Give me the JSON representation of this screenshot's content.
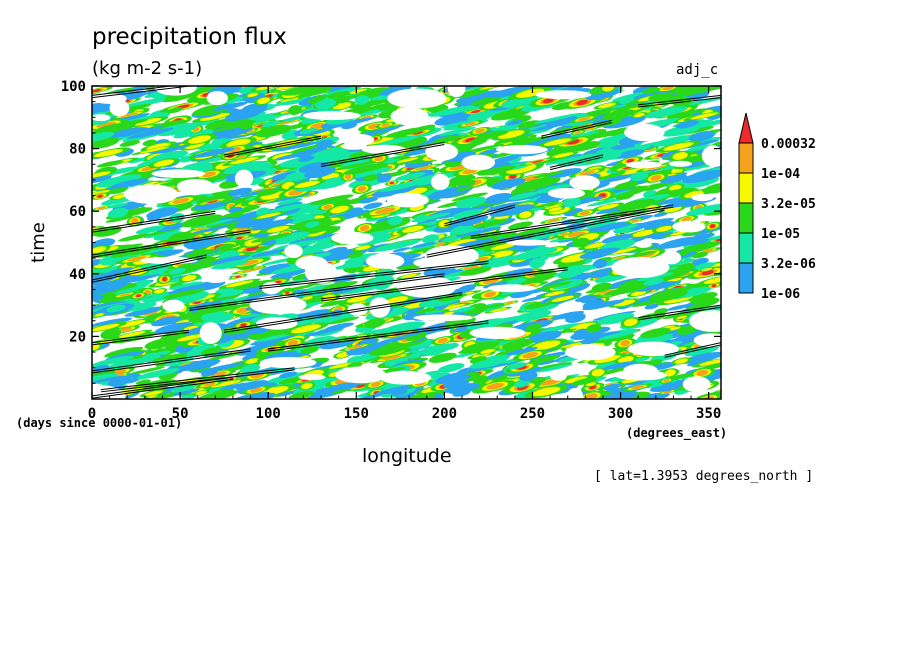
{
  "header": {
    "title": "precipitation flux",
    "units": "(kg m-2 s-1)",
    "tag": "adj_c",
    "note": "[ lat=1.3953 degrees_north ]"
  },
  "chart_data": {
    "type": "heatmap",
    "title": "precipitation flux",
    "subtitle": "(kg m-2 s-1)",
    "xlabel": "longitude",
    "ylabel": "time",
    "x_units": "(degrees_east)",
    "y_units": "(days since 0000-01-01)",
    "xlim": [
      0,
      357
    ],
    "ylim": [
      0,
      100
    ],
    "x_ticks": [
      0,
      50,
      100,
      150,
      200,
      250,
      300,
      350
    ],
    "y_ticks": [
      20,
      40,
      60,
      80,
      100
    ],
    "colorbar": {
      "levels": [
        "1e-06",
        "3.2e-06",
        "1e-05",
        "3.2e-05",
        "1e-04",
        "0.00032"
      ],
      "colors": [
        "#2aa3f0",
        "#14e8a4",
        "#2ad81a",
        "#f7f700",
        "#f6a21a",
        "#ee2a2a"
      ],
      "extend": "max"
    },
    "propagation_lines": [
      {
        "x": [
          0,
          80
        ],
        "y": [
          1,
          7
        ]
      },
      {
        "x": [
          0,
          90
        ],
        "y": [
          9,
          16
        ]
      },
      {
        "x": [
          0,
          55
        ],
        "y": [
          18,
          22
        ]
      },
      {
        "x": [
          5,
          115
        ],
        "y": [
          3,
          10
        ]
      },
      {
        "x": [
          100,
          225
        ],
        "y": [
          16,
          25
        ]
      },
      {
        "x": [
          75,
          210
        ],
        "y": [
          22,
          34
        ]
      },
      {
        "x": [
          55,
          200
        ],
        "y": [
          29,
          40
        ]
      },
      {
        "x": [
          130,
          270
        ],
        "y": [
          32,
          42
        ]
      },
      {
        "x": [
          0,
          65
        ],
        "y": [
          38,
          46
        ]
      },
      {
        "x": [
          95,
          225
        ],
        "y": [
          36,
          44
        ]
      },
      {
        "x": [
          190,
          325
        ],
        "y": [
          46,
          61
        ]
      },
      {
        "x": [
          0,
          90
        ],
        "y": [
          46,
          54
        ]
      },
      {
        "x": [
          0,
          70
        ],
        "y": [
          54,
          60
        ]
      },
      {
        "x": [
          215,
          330
        ],
        "y": [
          52,
          62
        ]
      },
      {
        "x": [
          75,
          130
        ],
        "y": [
          78,
          84
        ]
      },
      {
        "x": [
          130,
          200
        ],
        "y": [
          75,
          82
        ]
      },
      {
        "x": [
          260,
          290
        ],
        "y": [
          74,
          78
        ]
      },
      {
        "x": [
          255,
          295
        ],
        "y": [
          84,
          89
        ]
      },
      {
        "x": [
          0,
          60
        ],
        "y": [
          97,
          101
        ]
      },
      {
        "x": [
          310,
          357
        ],
        "y": [
          94,
          97
        ]
      },
      {
        "x": [
          310,
          357
        ],
        "y": [
          26,
          30
        ]
      },
      {
        "x": [
          325,
          357
        ],
        "y": [
          14,
          18
        ]
      },
      {
        "x": [
          200,
          240
        ],
        "y": [
          56,
          62
        ]
      }
    ]
  }
}
